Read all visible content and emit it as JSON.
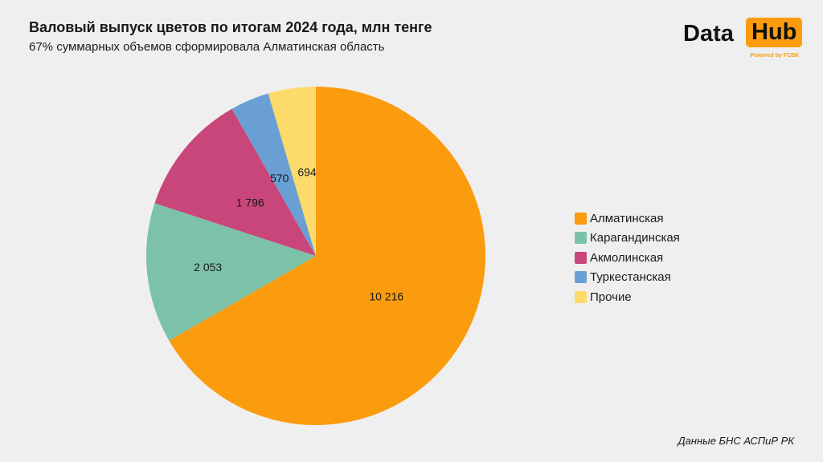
{
  "chart_data": {
    "type": "pie",
    "title": "Валовый выпуск цветов по итогам 2024 года, млн тенге",
    "subtitle": "67% суммарных объемов сформировала Алматинская область",
    "categories": [
      "Алматинская",
      "Карагандинская",
      "Акмолинская",
      "Туркестанская",
      "Прочие"
    ],
    "values": [
      10216,
      2053,
      1796,
      570,
      694
    ],
    "data_labels": [
      "10 216",
      "2 053",
      "1 796",
      "570",
      "694"
    ],
    "colors": [
      "#fb9b0e",
      "#7cc2a8",
      "#c9467a",
      "#6a9fd4",
      "#fddb6a"
    ],
    "start_angle": "12 o'clock",
    "direction": "clockwise",
    "legend_position": "right"
  },
  "logo": {
    "word1": "Data",
    "word2": "Hub",
    "tagline": "Powered by FCBK"
  },
  "source": "Данные БНС АСПиР РК"
}
